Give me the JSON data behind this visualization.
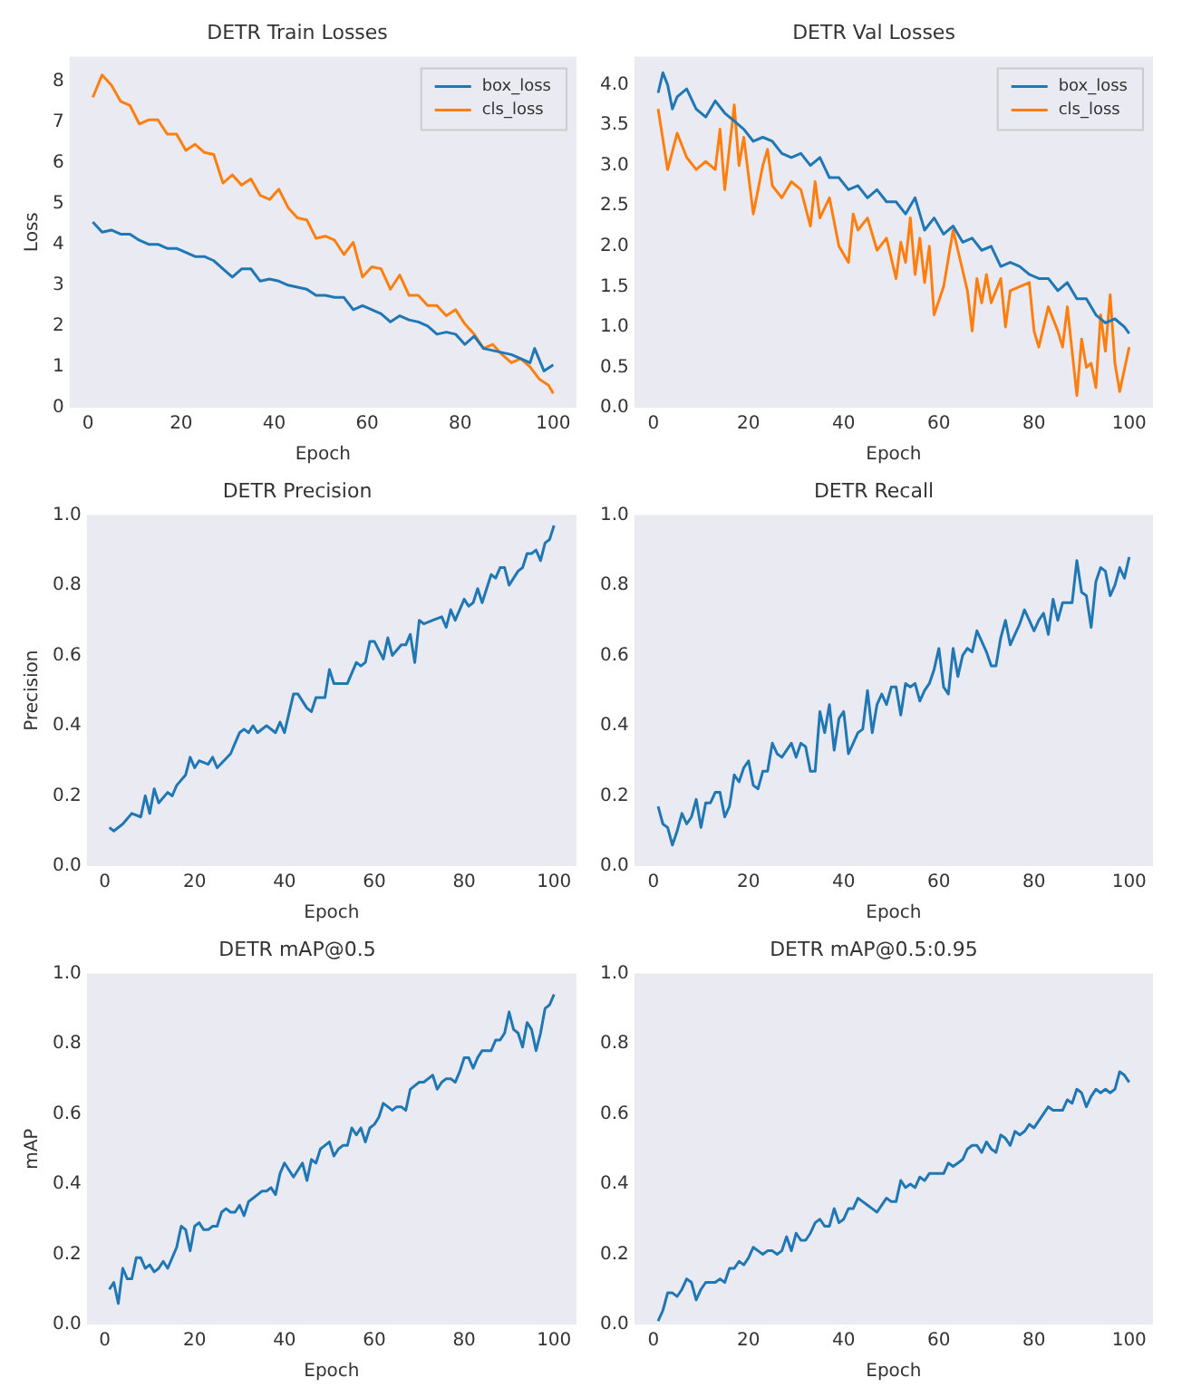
{
  "chart_data": [
    {
      "type": "line",
      "title": "DETR Train Losses",
      "xlabel": "Epoch",
      "ylabel": "Loss",
      "xlim": [
        -4,
        105
      ],
      "xticks": [
        0,
        20,
        40,
        60,
        80,
        100
      ],
      "ylim": [
        0,
        8.6
      ],
      "yticks": [
        0,
        1,
        2,
        3,
        4,
        5,
        6,
        7,
        8
      ],
      "grid": false,
      "legend": "top right",
      "series": [
        {
          "name": "box_loss",
          "color": "#1f77b4",
          "x": [
            1,
            3,
            5,
            7,
            9,
            11,
            13,
            15,
            17,
            19,
            21,
            23,
            25,
            27,
            29,
            31,
            33,
            35,
            37,
            39,
            41,
            43,
            45,
            47,
            49,
            51,
            53,
            55,
            57,
            59,
            61,
            63,
            65,
            67,
            69,
            71,
            73,
            75,
            77,
            79,
            81,
            83,
            85,
            87,
            89,
            91,
            93,
            95,
            96,
            98,
            100
          ],
          "values": [
            4.55,
            4.3,
            4.35,
            4.25,
            4.25,
            4.1,
            4.0,
            4.0,
            3.9,
            3.9,
            3.8,
            3.7,
            3.7,
            3.6,
            3.4,
            3.2,
            3.4,
            3.4,
            3.1,
            3.15,
            3.1,
            3.0,
            2.95,
            2.9,
            2.75,
            2.75,
            2.7,
            2.7,
            2.4,
            2.5,
            2.4,
            2.3,
            2.1,
            2.25,
            2.15,
            2.1,
            2.0,
            1.8,
            1.85,
            1.8,
            1.55,
            1.75,
            1.45,
            1.4,
            1.35,
            1.3,
            1.2,
            1.1,
            1.45,
            0.9,
            1.05
          ]
        },
        {
          "name": "cls_loss",
          "color": "#ff7f0e",
          "x": [
            1,
            3,
            5,
            7,
            9,
            11,
            13,
            15,
            17,
            19,
            21,
            23,
            25,
            27,
            29,
            31,
            33,
            35,
            37,
            39,
            41,
            43,
            45,
            47,
            49,
            51,
            53,
            55,
            57,
            59,
            61,
            63,
            65,
            67,
            69,
            71,
            73,
            75,
            77,
            79,
            81,
            83,
            85,
            87,
            89,
            91,
            93,
            95,
            97,
            99,
            100
          ],
          "values": [
            7.6,
            8.15,
            7.9,
            7.5,
            7.4,
            6.95,
            7.05,
            7.05,
            6.7,
            6.7,
            6.3,
            6.45,
            6.25,
            6.2,
            5.5,
            5.7,
            5.45,
            5.6,
            5.2,
            5.1,
            5.35,
            4.9,
            4.65,
            4.6,
            4.15,
            4.2,
            4.1,
            3.75,
            4.05,
            3.2,
            3.45,
            3.4,
            2.9,
            3.25,
            2.75,
            2.75,
            2.5,
            2.5,
            2.25,
            2.4,
            2.05,
            1.8,
            1.45,
            1.55,
            1.3,
            1.1,
            1.2,
            1.0,
            0.7,
            0.55,
            0.35
          ]
        }
      ]
    },
    {
      "type": "line",
      "title": "DETR Val Losses",
      "xlabel": "Epoch",
      "xlim": [
        -4,
        105
      ],
      "xticks": [
        0,
        20,
        40,
        60,
        80,
        100
      ],
      "ylim": [
        0,
        4.35
      ],
      "yticks": [
        {
          "value": 0,
          "label": "0.0"
        },
        {
          "value": 0.5,
          "label": "0.5"
        },
        {
          "value": 1,
          "label": "1.0"
        },
        {
          "value": 1.5,
          "label": "1.5"
        },
        {
          "value": 2,
          "label": "2.0"
        },
        {
          "value": 2.5,
          "label": "2.5"
        },
        {
          "value": 3,
          "label": "3.0"
        },
        {
          "value": 3.5,
          "label": "3.5"
        },
        {
          "value": 4,
          "label": "4.0"
        }
      ],
      "grid": false,
      "legend": "top right",
      "series": [
        {
          "name": "box_loss",
          "color": "#1f77b4",
          "x": [
            1,
            2,
            3,
            4,
            5,
            7,
            9,
            11,
            13,
            15,
            17,
            19,
            21,
            23,
            25,
            27,
            29,
            31,
            33,
            35,
            37,
            39,
            41,
            43,
            45,
            47,
            49,
            51,
            53,
            55,
            57,
            59,
            61,
            63,
            65,
            67,
            69,
            71,
            73,
            75,
            77,
            79,
            81,
            83,
            85,
            87,
            89,
            91,
            93,
            95,
            97,
            99,
            100
          ],
          "values": [
            3.9,
            4.15,
            4.0,
            3.7,
            3.85,
            3.95,
            3.7,
            3.6,
            3.8,
            3.65,
            3.55,
            3.45,
            3.3,
            3.35,
            3.3,
            3.15,
            3.1,
            3.15,
            3.0,
            3.1,
            2.85,
            2.85,
            2.7,
            2.75,
            2.6,
            2.7,
            2.55,
            2.55,
            2.4,
            2.6,
            2.2,
            2.35,
            2.15,
            2.25,
            2.05,
            2.1,
            1.95,
            2.0,
            1.75,
            1.8,
            1.75,
            1.65,
            1.6,
            1.6,
            1.45,
            1.55,
            1.35,
            1.35,
            1.15,
            1.05,
            1.1,
            1.0,
            0.92
          ]
        },
        {
          "name": "cls_loss",
          "color": "#ff7f0e",
          "x": [
            1,
            3,
            5,
            7,
            9,
            11,
            13,
            14,
            15,
            17,
            18,
            19,
            21,
            23,
            24,
            25,
            27,
            29,
            31,
            33,
            34,
            35,
            37,
            39,
            41,
            42,
            43,
            45,
            47,
            49,
            51,
            52,
            53,
            54,
            55,
            56,
            57,
            58,
            59,
            61,
            63,
            65,
            66,
            67,
            68,
            69,
            70,
            71,
            73,
            74,
            75,
            77,
            79,
            80,
            81,
            83,
            85,
            86,
            87,
            89,
            90,
            91,
            92,
            93,
            94,
            95,
            96,
            97,
            98,
            100
          ],
          "values": [
            3.7,
            2.95,
            3.4,
            3.1,
            2.95,
            3.05,
            2.95,
            3.45,
            2.7,
            3.75,
            3.0,
            3.35,
            2.4,
            3.0,
            3.2,
            2.75,
            2.6,
            2.8,
            2.7,
            2.25,
            2.8,
            2.35,
            2.6,
            2.0,
            1.8,
            2.4,
            2.2,
            2.35,
            1.95,
            2.1,
            1.6,
            2.05,
            1.8,
            2.35,
            1.65,
            2.1,
            1.55,
            2.0,
            1.15,
            1.5,
            2.2,
            1.7,
            1.45,
            0.95,
            1.6,
            1.3,
            1.65,
            1.3,
            1.6,
            1.0,
            1.45,
            1.5,
            1.55,
            0.95,
            0.75,
            1.25,
            0.95,
            0.75,
            1.25,
            0.15,
            0.85,
            0.5,
            0.55,
            0.25,
            1.15,
            0.7,
            1.4,
            0.55,
            0.2,
            0.75
          ]
        }
      ]
    },
    {
      "type": "line",
      "title": "DETR Precision",
      "xlabel": "Epoch",
      "ylabel": "Precision",
      "xlim": [
        -4,
        105
      ],
      "xticks": [
        0,
        20,
        40,
        60,
        80,
        100
      ],
      "ylim": [
        0,
        1
      ],
      "yticks": [
        {
          "value": 0,
          "label": "0.0"
        },
        {
          "value": 0.2,
          "label": "0.2"
        },
        {
          "value": 0.4,
          "label": "0.4"
        },
        {
          "value": 0.6,
          "label": "0.6"
        },
        {
          "value": 0.8,
          "label": "0.8"
        },
        {
          "value": 1,
          "label": "1.0"
        }
      ],
      "grid": false,
      "series": [
        {
          "color": "#1f77b4",
          "x": [
            1,
            2,
            4,
            6,
            8,
            9,
            10,
            11,
            12,
            14,
            15,
            16,
            18,
            19,
            20,
            21,
            23,
            24,
            25,
            28,
            30,
            31,
            32,
            33,
            34,
            36,
            38,
            39,
            40,
            42,
            43,
            45,
            46,
            47,
            49,
            50,
            51,
            54,
            56,
            57,
            58,
            59,
            60,
            62,
            63,
            64,
            66,
            67,
            68,
            69,
            70,
            71,
            73,
            75,
            76,
            77,
            78,
            80,
            81,
            82,
            83,
            84,
            86,
            87,
            88,
            89,
            90,
            92,
            93,
            94,
            95,
            96,
            97,
            98,
            99,
            100
          ],
          "values": [
            0.11,
            0.1,
            0.12,
            0.15,
            0.14,
            0.2,
            0.15,
            0.22,
            0.18,
            0.21,
            0.2,
            0.23,
            0.26,
            0.31,
            0.28,
            0.3,
            0.29,
            0.31,
            0.28,
            0.32,
            0.38,
            0.39,
            0.38,
            0.4,
            0.38,
            0.4,
            0.38,
            0.41,
            0.38,
            0.49,
            0.49,
            0.45,
            0.44,
            0.48,
            0.48,
            0.56,
            0.52,
            0.52,
            0.58,
            0.57,
            0.58,
            0.64,
            0.64,
            0.59,
            0.65,
            0.6,
            0.63,
            0.63,
            0.66,
            0.58,
            0.7,
            0.69,
            0.7,
            0.71,
            0.68,
            0.73,
            0.7,
            0.76,
            0.74,
            0.75,
            0.79,
            0.75,
            0.83,
            0.82,
            0.85,
            0.85,
            0.8,
            0.84,
            0.85,
            0.89,
            0.89,
            0.9,
            0.87,
            0.92,
            0.93,
            0.97
          ]
        }
      ]
    },
    {
      "type": "line",
      "title": "DETR Recall",
      "xlabel": "Epoch",
      "xlim": [
        -4,
        105
      ],
      "xticks": [
        0,
        20,
        40,
        60,
        80,
        100
      ],
      "ylim": [
        0,
        1
      ],
      "yticks": [
        {
          "value": 0,
          "label": "0.0"
        },
        {
          "value": 0.2,
          "label": "0.2"
        },
        {
          "value": 0.4,
          "label": "0.4"
        },
        {
          "value": 0.6,
          "label": "0.6"
        },
        {
          "value": 0.8,
          "label": "0.8"
        },
        {
          "value": 1,
          "label": "1.0"
        }
      ],
      "grid": false,
      "series": [
        {
          "color": "#1f77b4",
          "x": [
            1,
            2,
            3,
            4,
            5,
            6,
            7,
            8,
            9,
            10,
            11,
            12,
            13,
            14,
            15,
            16,
            17,
            18,
            19,
            20,
            21,
            22,
            23,
            24,
            25,
            26,
            27,
            28,
            29,
            30,
            31,
            32,
            33,
            34,
            35,
            36,
            37,
            38,
            39,
            40,
            41,
            42,
            43,
            44,
            45,
            46,
            47,
            48,
            49,
            50,
            51,
            52,
            53,
            54,
            55,
            56,
            57,
            58,
            59,
            60,
            61,
            62,
            63,
            64,
            65,
            66,
            67,
            68,
            69,
            70,
            71,
            72,
            73,
            74,
            75,
            76,
            77,
            78,
            79,
            80,
            81,
            82,
            83,
            84,
            85,
            86,
            87,
            88,
            89,
            90,
            91,
            92,
            93,
            94,
            95,
            96,
            97,
            98,
            99,
            100
          ],
          "values": [
            0.17,
            0.12,
            0.11,
            0.06,
            0.1,
            0.15,
            0.12,
            0.14,
            0.19,
            0.11,
            0.18,
            0.18,
            0.21,
            0.21,
            0.14,
            0.17,
            0.26,
            0.24,
            0.28,
            0.3,
            0.23,
            0.22,
            0.27,
            0.27,
            0.35,
            0.32,
            0.31,
            0.33,
            0.35,
            0.31,
            0.35,
            0.34,
            0.27,
            0.27,
            0.44,
            0.38,
            0.46,
            0.33,
            0.42,
            0.44,
            0.32,
            0.35,
            0.38,
            0.39,
            0.5,
            0.38,
            0.46,
            0.49,
            0.46,
            0.51,
            0.51,
            0.43,
            0.52,
            0.51,
            0.52,
            0.47,
            0.5,
            0.52,
            0.56,
            0.62,
            0.51,
            0.49,
            0.62,
            0.54,
            0.6,
            0.62,
            0.61,
            0.67,
            0.64,
            0.61,
            0.57,
            0.57,
            0.65,
            0.7,
            0.63,
            0.66,
            0.69,
            0.73,
            0.7,
            0.67,
            0.7,
            0.72,
            0.66,
            0.76,
            0.7,
            0.75,
            0.75,
            0.75,
            0.87,
            0.78,
            0.77,
            0.68,
            0.81,
            0.85,
            0.84,
            0.77,
            0.8,
            0.85,
            0.82,
            0.88
          ]
        }
      ]
    },
    {
      "type": "line",
      "title": "DETR mAP@0.5",
      "xlabel": "Epoch",
      "ylabel": "mAP",
      "xlim": [
        -4,
        105
      ],
      "xticks": [
        0,
        20,
        40,
        60,
        80,
        100
      ],
      "ylim": [
        0,
        1
      ],
      "yticks": [
        {
          "value": 0,
          "label": "0.0"
        },
        {
          "value": 0.2,
          "label": "0.2"
        },
        {
          "value": 0.4,
          "label": "0.4"
        },
        {
          "value": 0.6,
          "label": "0.6"
        },
        {
          "value": 0.8,
          "label": "0.8"
        },
        {
          "value": 1,
          "label": "1.0"
        }
      ],
      "grid": false,
      "series": [
        {
          "color": "#1f77b4",
          "x": [
            1,
            2,
            3,
            4,
            5,
            6,
            7,
            8,
            9,
            10,
            11,
            12,
            13,
            14,
            15,
            16,
            17,
            18,
            19,
            20,
            21,
            22,
            23,
            24,
            25,
            26,
            27,
            28,
            29,
            30,
            31,
            32,
            33,
            34,
            35,
            36,
            37,
            38,
            39,
            40,
            41,
            42,
            43,
            44,
            45,
            46,
            47,
            48,
            49,
            50,
            51,
            52,
            53,
            54,
            55,
            56,
            57,
            58,
            59,
            60,
            61,
            62,
            63,
            64,
            65,
            66,
            67,
            68,
            69,
            70,
            71,
            72,
            73,
            74,
            75,
            76,
            77,
            78,
            79,
            80,
            81,
            82,
            83,
            84,
            85,
            86,
            87,
            88,
            89,
            90,
            91,
            92,
            93,
            94,
            95,
            96,
            97,
            98,
            99,
            100
          ],
          "values": [
            0.1,
            0.12,
            0.06,
            0.16,
            0.13,
            0.13,
            0.19,
            0.19,
            0.16,
            0.17,
            0.15,
            0.16,
            0.18,
            0.16,
            0.19,
            0.22,
            0.28,
            0.27,
            0.21,
            0.28,
            0.29,
            0.27,
            0.27,
            0.28,
            0.28,
            0.32,
            0.33,
            0.32,
            0.32,
            0.34,
            0.31,
            0.35,
            0.36,
            0.37,
            0.38,
            0.38,
            0.39,
            0.37,
            0.43,
            0.46,
            0.44,
            0.42,
            0.44,
            0.46,
            0.41,
            0.47,
            0.46,
            0.5,
            0.51,
            0.52,
            0.48,
            0.5,
            0.51,
            0.51,
            0.56,
            0.54,
            0.56,
            0.52,
            0.56,
            0.57,
            0.59,
            0.63,
            0.62,
            0.61,
            0.62,
            0.62,
            0.61,
            0.67,
            0.68,
            0.69,
            0.69,
            0.7,
            0.71,
            0.67,
            0.69,
            0.7,
            0.7,
            0.69,
            0.72,
            0.76,
            0.76,
            0.73,
            0.76,
            0.78,
            0.78,
            0.78,
            0.81,
            0.81,
            0.83,
            0.89,
            0.84,
            0.83,
            0.79,
            0.86,
            0.84,
            0.78,
            0.83,
            0.9,
            0.91,
            0.94
          ]
        }
      ]
    },
    {
      "type": "line",
      "title": "DETR mAP@0.5:0.95",
      "xlabel": "Epoch",
      "xlim": [
        -4,
        105
      ],
      "xticks": [
        0,
        20,
        40,
        60,
        80,
        100
      ],
      "ylim": [
        0,
        1
      ],
      "yticks": [
        {
          "value": 0,
          "label": "0.0"
        },
        {
          "value": 0.2,
          "label": "0.2"
        },
        {
          "value": 0.4,
          "label": "0.4"
        },
        {
          "value": 0.6,
          "label": "0.6"
        },
        {
          "value": 0.8,
          "label": "0.8"
        },
        {
          "value": 1,
          "label": "1.0"
        }
      ],
      "grid": false,
      "series": [
        {
          "color": "#1f77b4",
          "x": [
            1,
            2,
            3,
            4,
            5,
            6,
            7,
            8,
            9,
            10,
            11,
            12,
            13,
            14,
            15,
            16,
            17,
            18,
            19,
            20,
            21,
            22,
            23,
            24,
            25,
            26,
            27,
            28,
            29,
            30,
            31,
            32,
            33,
            34,
            35,
            36,
            37,
            38,
            39,
            40,
            41,
            42,
            43,
            44,
            45,
            46,
            47,
            48,
            49,
            50,
            51,
            52,
            53,
            54,
            55,
            56,
            57,
            58,
            59,
            60,
            61,
            62,
            63,
            64,
            65,
            66,
            67,
            68,
            69,
            70,
            71,
            72,
            73,
            74,
            75,
            76,
            77,
            78,
            79,
            80,
            81,
            82,
            83,
            84,
            85,
            86,
            87,
            88,
            89,
            90,
            91,
            92,
            93,
            94,
            95,
            96,
            97,
            98,
            99,
            100
          ],
          "values": [
            0.01,
            0.04,
            0.09,
            0.09,
            0.08,
            0.1,
            0.13,
            0.12,
            0.07,
            0.1,
            0.12,
            0.12,
            0.12,
            0.13,
            0.12,
            0.16,
            0.16,
            0.18,
            0.17,
            0.19,
            0.22,
            0.21,
            0.2,
            0.21,
            0.21,
            0.2,
            0.21,
            0.25,
            0.21,
            0.26,
            0.24,
            0.24,
            0.26,
            0.29,
            0.3,
            0.28,
            0.28,
            0.33,
            0.29,
            0.3,
            0.33,
            0.33,
            0.36,
            0.35,
            0.34,
            0.33,
            0.32,
            0.34,
            0.36,
            0.35,
            0.35,
            0.41,
            0.39,
            0.4,
            0.39,
            0.42,
            0.41,
            0.43,
            0.43,
            0.43,
            0.43,
            0.46,
            0.45,
            0.46,
            0.47,
            0.5,
            0.51,
            0.51,
            0.49,
            0.52,
            0.5,
            0.49,
            0.54,
            0.53,
            0.51,
            0.55,
            0.54,
            0.55,
            0.57,
            0.56,
            0.58,
            0.6,
            0.62,
            0.61,
            0.61,
            0.61,
            0.64,
            0.63,
            0.67,
            0.66,
            0.62,
            0.65,
            0.67,
            0.66,
            0.67,
            0.66,
            0.67,
            0.72,
            0.71,
            0.69
          ]
        }
      ]
    }
  ]
}
